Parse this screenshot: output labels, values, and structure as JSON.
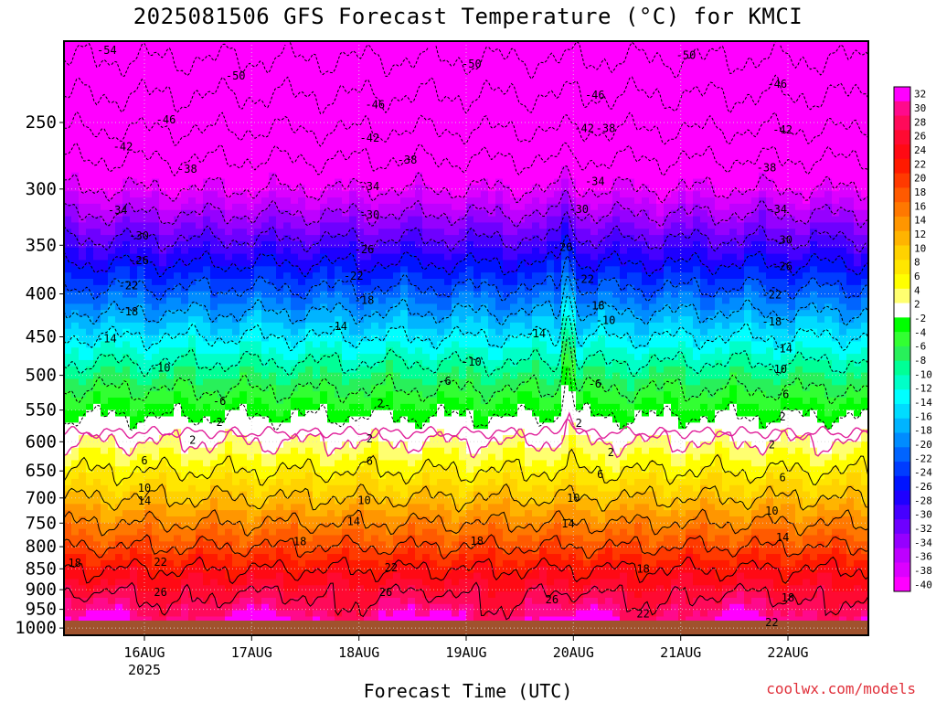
{
  "title": "2025081506 GFS Forecast Temperature (°C) for KMCI",
  "xlabel": "Forecast Time (UTC)",
  "credit": "coolwx.com/models",
  "chart_data": {
    "type": "heatmap",
    "title": "2025081506 GFS Forecast Temperature (°C) for KMCI",
    "xlabel": "Forecast Time (UTC)",
    "ylabel": "",
    "x_ticks": [
      "16AUG",
      "17AUG",
      "18AUG",
      "19AUG",
      "20AUG",
      "21AUG",
      "22AUG"
    ],
    "x_tick_days": [
      16,
      17,
      18,
      19,
      20,
      21,
      22
    ],
    "x_year_label": "2025",
    "xlim_days": [
      15.25,
      22.75
    ],
    "y_ticks": [
      250,
      300,
      350,
      400,
      450,
      500,
      550,
      600,
      650,
      700,
      750,
      800,
      850,
      900,
      950,
      1000
    ],
    "ylim_hpa": [
      200,
      1020
    ],
    "y_scale": "log-pressure",
    "ground_level_hpa": 980,
    "grid": "dotted",
    "colorbar_labels": [
      32,
      30,
      28,
      26,
      24,
      22,
      20,
      18,
      16,
      14,
      12,
      10,
      8,
      6,
      4,
      2,
      -2,
      -4,
      -6,
      -8,
      -10,
      -12,
      -14,
      -16,
      -18,
      -20,
      -22,
      -24,
      -26,
      -28,
      -30,
      -32,
      -34,
      -36,
      -38,
      -40
    ],
    "colorbar_colors": [
      "#ff00ff",
      "#ff0a8c",
      "#ff0a5a",
      "#ff0a32",
      "#ff0a14",
      "#ff1a00",
      "#ff3a00",
      "#ff5a00",
      "#ff7800",
      "#ff9600",
      "#ffb400",
      "#ffd200",
      "#ffe600",
      "#ffff00",
      "#ffff70",
      "#ffffff",
      "#00ff00",
      "#32ff32",
      "#28f05a",
      "#00ff96",
      "#00ffc8",
      "#00ffff",
      "#00dcff",
      "#00b4ff",
      "#008cff",
      "#0064ff",
      "#003cff",
      "#0014ff",
      "#1e00ff",
      "#4600ff",
      "#6e00ff",
      "#9600ff",
      "#be00ff",
      "#dc00ff",
      "#ff00ff"
    ],
    "contour_levels": [
      -54,
      -50,
      -46,
      -42,
      -38,
      -34,
      -30,
      -26,
      -22,
      -18,
      -14,
      -10,
      -6,
      -2,
      2,
      6,
      10,
      14,
      18,
      22,
      26
    ],
    "freezing_contour_color": "#e0209a",
    "profile_pressures_hpa": [
      200,
      250,
      300,
      350,
      400,
      450,
      500,
      550,
      600,
      650,
      700,
      750,
      800,
      850,
      900,
      950,
      980
    ],
    "profile_temps_c": [
      -56,
      -47,
      -38,
      -29,
      -21,
      -14,
      -8,
      -3,
      2,
      6,
      10,
      14,
      18,
      22,
      25,
      28,
      30
    ],
    "contour_labels": [
      {
        "text": "-54",
        "day": 15.65,
        "p": 205
      },
      {
        "text": "-50",
        "day": 16.85,
        "p": 220
      },
      {
        "text": "-50",
        "day": 19.05,
        "p": 213
      },
      {
        "text": "-50",
        "day": 21.05,
        "p": 208
      },
      {
        "text": "-46",
        "day": 21.9,
        "p": 225
      },
      {
        "text": "-46",
        "day": 16.2,
        "p": 248
      },
      {
        "text": "-46",
        "day": 18.15,
        "p": 238
      },
      {
        "text": "-46",
        "day": 20.2,
        "p": 232
      },
      {
        "text": "-42",
        "day": 20.1,
        "p": 254
      },
      {
        "text": "-38",
        "day": 20.3,
        "p": 254
      },
      {
        "text": "-42",
        "day": 15.8,
        "p": 267
      },
      {
        "text": "-42",
        "day": 18.1,
        "p": 261
      },
      {
        "text": "-42",
        "day": 21.95,
        "p": 255
      },
      {
        "text": "-38",
        "day": 16.4,
        "p": 284
      },
      {
        "text": "-38",
        "day": 18.45,
        "p": 277
      },
      {
        "text": "-38",
        "day": 21.8,
        "p": 283
      },
      {
        "text": "-34",
        "day": 18.1,
        "p": 298
      },
      {
        "text": "-34",
        "day": 20.2,
        "p": 294
      },
      {
        "text": "-34",
        "day": 15.75,
        "p": 318
      },
      {
        "text": "-34",
        "day": 21.9,
        "p": 317
      },
      {
        "text": "-30",
        "day": 18.1,
        "p": 322
      },
      {
        "text": "-30",
        "day": 20.05,
        "p": 317
      },
      {
        "text": "-30",
        "day": 15.95,
        "p": 341
      },
      {
        "text": "-30",
        "day": 21.95,
        "p": 345
      },
      {
        "text": "-26",
        "day": 18.05,
        "p": 354
      },
      {
        "text": "-26",
        "day": 19.9,
        "p": 352
      },
      {
        "text": "-26",
        "day": 15.95,
        "p": 365
      },
      {
        "text": "-26",
        "day": 21.95,
        "p": 371
      },
      {
        "text": "-22",
        "day": 17.95,
        "p": 381
      },
      {
        "text": "-22",
        "day": 20.1,
        "p": 384
      },
      {
        "text": "-22",
        "day": 15.85,
        "p": 391
      },
      {
        "text": "-22",
        "day": 21.85,
        "p": 401
      },
      {
        "text": "-18",
        "day": 18.05,
        "p": 407
      },
      {
        "text": "-18",
        "day": 20.2,
        "p": 413
      },
      {
        "text": "-18",
        "day": 15.85,
        "p": 420
      },
      {
        "text": "-18",
        "day": 21.85,
        "p": 432
      },
      {
        "text": "-10",
        "day": 20.3,
        "p": 430
      },
      {
        "text": "-14",
        "day": 17.8,
        "p": 437
      },
      {
        "text": "-14",
        "day": 15.65,
        "p": 452
      },
      {
        "text": "-14",
        "day": 19.65,
        "p": 446
      },
      {
        "text": "-14",
        "day": 21.95,
        "p": 465
      },
      {
        "text": "-10",
        "day": 16.15,
        "p": 490
      },
      {
        "text": "-10",
        "day": 19.05,
        "p": 482
      },
      {
        "text": "-10",
        "day": 21.9,
        "p": 492
      },
      {
        "text": "-6",
        "day": 18.8,
        "p": 508
      },
      {
        "text": "-6",
        "day": 20.2,
        "p": 512
      },
      {
        "text": "-6",
        "day": 21.95,
        "p": 527
      },
      {
        "text": "-6",
        "day": 16.7,
        "p": 537
      },
      {
        "text": "2",
        "day": 18.2,
        "p": 540
      },
      {
        "text": "2",
        "day": 16.7,
        "p": 569
      },
      {
        "text": "2",
        "day": 20.05,
        "p": 570
      },
      {
        "text": "2",
        "day": 21.95,
        "p": 560
      },
      {
        "text": "2",
        "day": 16.45,
        "p": 597
      },
      {
        "text": "2",
        "day": 18.1,
        "p": 595
      },
      {
        "text": "2",
        "day": 20.35,
        "p": 618
      },
      {
        "text": "2",
        "day": 21.85,
        "p": 605
      },
      {
        "text": "6",
        "day": 16.0,
        "p": 632
      },
      {
        "text": "6",
        "day": 18.1,
        "p": 633
      },
      {
        "text": "6",
        "day": 20.25,
        "p": 656
      },
      {
        "text": "6",
        "day": 21.95,
        "p": 662
      },
      {
        "text": "10",
        "day": 16.0,
        "p": 681
      },
      {
        "text": "10",
        "day": 18.05,
        "p": 705
      },
      {
        "text": "10",
        "day": 20.0,
        "p": 700
      },
      {
        "text": "10",
        "day": 21.85,
        "p": 725
      },
      {
        "text": "14",
        "day": 16.0,
        "p": 706
      },
      {
        "text": "14",
        "day": 17.95,
        "p": 747
      },
      {
        "text": "14",
        "day": 19.95,
        "p": 751
      },
      {
        "text": "14",
        "day": 21.95,
        "p": 780
      },
      {
        "text": "18",
        "day": 15.35,
        "p": 837
      },
      {
        "text": "18",
        "day": 17.45,
        "p": 789
      },
      {
        "text": "18",
        "day": 19.1,
        "p": 788
      },
      {
        "text": "18",
        "day": 20.65,
        "p": 850
      },
      {
        "text": "18",
        "day": 22.0,
        "p": 920
      },
      {
        "text": "22",
        "day": 16.15,
        "p": 835
      },
      {
        "text": "22",
        "day": 18.3,
        "p": 847
      },
      {
        "text": "22",
        "day": 20.65,
        "p": 962
      },
      {
        "text": "22",
        "day": 21.85,
        "p": 985
      },
      {
        "text": "26",
        "day": 16.15,
        "p": 907
      },
      {
        "text": "26",
        "day": 18.25,
        "p": 907
      },
      {
        "text": "26",
        "day": 19.8,
        "p": 925
      }
    ]
  }
}
